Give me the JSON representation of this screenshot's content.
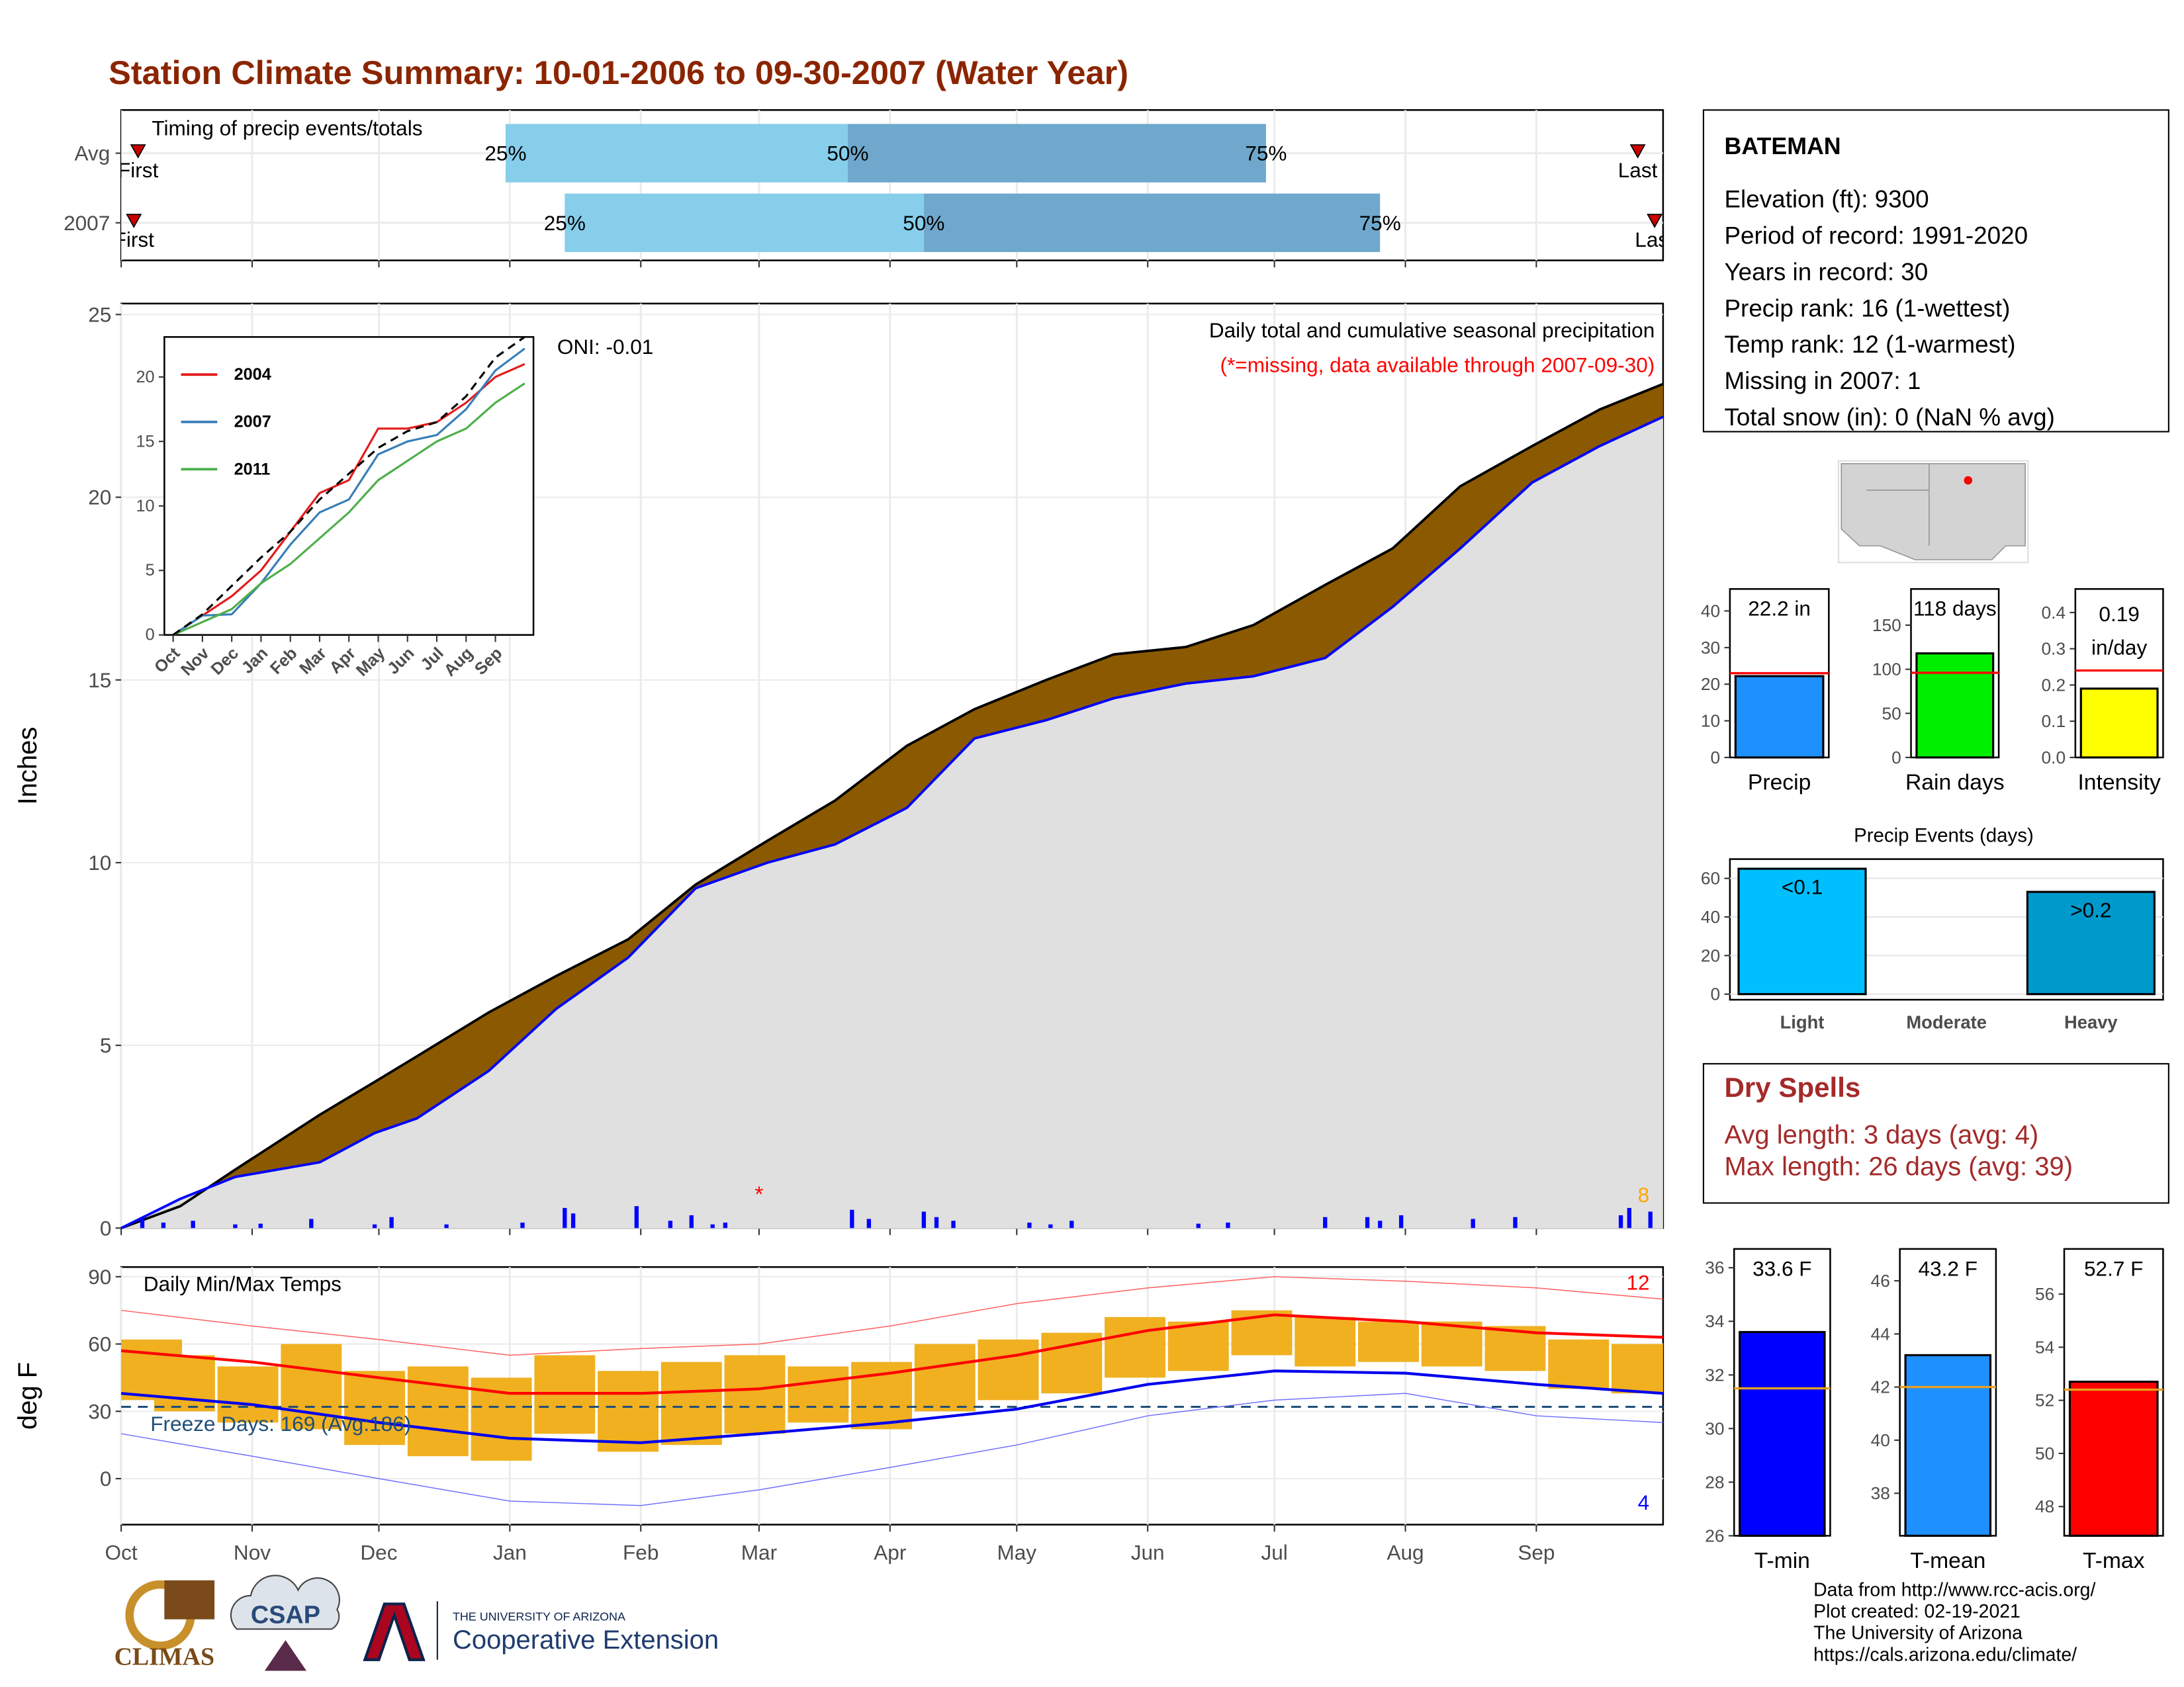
{
  "title": "Station Climate Summary: 10-01-2006 to 09-30-2007 (Water Year)",
  "chart_data": [
    {
      "type": "timing",
      "title": "Timing of precip events/totals",
      "categories": [
        "Avg",
        "2007"
      ],
      "quantile_labels": [
        "25%",
        "50%",
        "75%"
      ],
      "quantiles": [
        [
          91,
          172,
          271
        ],
        [
          105,
          190,
          298
        ]
      ],
      "first_label": "First",
      "last_label": "Last",
      "first": [
        4,
        3
      ],
      "last": [
        359,
        363
      ],
      "colors": [
        "#87ceeb",
        "#6fa8cc"
      ],
      "marker_color": "#cc0000",
      "xlim": [
        0,
        365
      ],
      "xticks": [
        0,
        31,
        61,
        92,
        123,
        151,
        182,
        212,
        243,
        273,
        304,
        335
      ],
      "grid": true
    },
    {
      "type": "cumulative",
      "title": "Daily total and cumulative seasonal precipitation",
      "subtitle": "(*=missing, data available through 2007-09-30)",
      "ylabel": "Inches",
      "annotation": "ONI: -0.01",
      "count_label": "8",
      "x": [
        0,
        14,
        27,
        47,
        60,
        70,
        87,
        103,
        120,
        136,
        153,
        169,
        186,
        202,
        219,
        235,
        252,
        268,
        285,
        301,
        317,
        334,
        350,
        365
      ],
      "series": [
        {
          "color": "#000000",
          "fill": "#8b5a00",
          "values": [
            0,
            0.6,
            1.6,
            3.1,
            4.0,
            4.7,
            5.9,
            6.9,
            7.9,
            9.4,
            10.6,
            11.7,
            13.2,
            14.2,
            15.0,
            15.7,
            15.9,
            16.5,
            17.6,
            18.6,
            20.3,
            21.4,
            22.4,
            23.1
          ]
        },
        {
          "color": "#0000ff",
          "fill": "#e0e0e0",
          "values": [
            0,
            0.8,
            1.4,
            1.8,
            2.6,
            3.0,
            4.3,
            6.0,
            7.4,
            9.3,
            10.0,
            10.5,
            11.5,
            13.4,
            13.9,
            14.5,
            14.9,
            15.1,
            15.6,
            17.0,
            18.6,
            20.4,
            21.4,
            22.2
          ]
        }
      ],
      "daily": {
        "color": "#0000ff",
        "x": [
          5,
          10,
          17,
          27,
          33,
          45,
          60,
          64,
          77,
          95,
          105,
          107,
          122,
          130,
          135,
          140,
          143,
          173,
          177,
          190,
          193,
          197,
          215,
          220,
          225,
          255,
          262,
          285,
          295,
          298,
          303,
          320,
          330,
          355,
          357,
          362
        ],
        "values": [
          0.3,
          0.15,
          0.2,
          0.1,
          0.12,
          0.25,
          0.1,
          0.3,
          0.1,
          0.15,
          0.55,
          0.4,
          0.6,
          0.2,
          0.35,
          0.1,
          0.15,
          0.5,
          0.25,
          0.45,
          0.3,
          0.2,
          0.15,
          0.1,
          0.2,
          0.12,
          0.15,
          0.3,
          0.3,
          0.2,
          0.35,
          0.25,
          0.3,
          0.35,
          0.55,
          0.45
        ]
      },
      "missing_marker": "*",
      "missing_x": 151,
      "xlim": [
        0,
        365
      ],
      "xticks": [
        0,
        31,
        61,
        92,
        123,
        151,
        182,
        212,
        243,
        273,
        304,
        335
      ],
      "ylim": [
        0,
        25.3
      ],
      "yticks": [
        0,
        5,
        10,
        15,
        20,
        25
      ],
      "grid": true
    },
    {
      "type": "line",
      "x": [
        0,
        1,
        2,
        3,
        4,
        5,
        6,
        7,
        8,
        9,
        10,
        11,
        12
      ],
      "series": [
        {
          "name": "2004",
          "color": "#e41a1c",
          "values": [
            0,
            1.5,
            3,
            5,
            8,
            11,
            12,
            16,
            16,
            16.5,
            18,
            20,
            21
          ]
        },
        {
          "name": "2007",
          "color": "#377eb8",
          "values": [
            0,
            1.5,
            1.6,
            4,
            7,
            9.5,
            10.5,
            14,
            15,
            15.5,
            17.5,
            20.5,
            22.2
          ]
        },
        {
          "name": "2011",
          "color": "#4daf4a",
          "values": [
            0,
            1,
            2,
            4,
            5.5,
            7.5,
            9.5,
            12,
            13.5,
            15,
            16,
            18,
            19.5
          ]
        },
        {
          "color": "#000000",
          "dashed": true,
          "values": [
            0,
            1.6,
            3.8,
            6,
            8,
            10.5,
            12.5,
            14.5,
            15.8,
            16.5,
            18.5,
            21.5,
            23.1
          ]
        }
      ],
      "xlim": [
        -0.3,
        12.3
      ],
      "xticks": [
        {
          "value": 0,
          "label": "Oct"
        },
        {
          "value": 1,
          "label": "Nov"
        },
        {
          "value": 2,
          "label": "Dec"
        },
        {
          "value": 3,
          "label": "Jan"
        },
        {
          "value": 4,
          "label": "Feb"
        },
        {
          "value": 5,
          "label": "Mar"
        },
        {
          "value": 6,
          "label": "Apr"
        },
        {
          "value": 7,
          "label": "May"
        },
        {
          "value": 8,
          "label": "Jun"
        },
        {
          "value": 9,
          "label": "Jul"
        },
        {
          "value": 10,
          "label": "Aug"
        },
        {
          "value": 11,
          "label": "Sep"
        }
      ],
      "ylim": [
        0,
        23.1
      ],
      "yticks": [
        0,
        5,
        10,
        15,
        20
      ]
    },
    {
      "type": "temps",
      "title": "Daily Min/Max Temps",
      "ylabel": "deg F",
      "freeze_label": "Freeze Days: 169 (Avg:186)",
      "freeze": 32,
      "high_count": "12",
      "low_count": "4",
      "bars": {
        "color": "#f0b020",
        "x": [
          0,
          15,
          30,
          45,
          60,
          75,
          90,
          105,
          120,
          135,
          150,
          165,
          180,
          195,
          210,
          225,
          240,
          255,
          270,
          285,
          300,
          315,
          330,
          345,
          360
        ],
        "max": [
          62,
          55,
          50,
          60,
          48,
          50,
          45,
          55,
          48,
          52,
          55,
          50,
          52,
          60,
          62,
          65,
          72,
          70,
          75,
          72,
          70,
          70,
          68,
          62,
          60
        ],
        "min": [
          35,
          30,
          25,
          22,
          15,
          10,
          8,
          20,
          12,
          15,
          20,
          25,
          22,
          30,
          35,
          38,
          45,
          48,
          55,
          50,
          52,
          50,
          48,
          40,
          38
        ]
      },
      "x": [
        0,
        31,
        61,
        92,
        123,
        151,
        182,
        212,
        243,
        273,
        304,
        335,
        365
      ],
      "lines": [
        {
          "color": "#ff6060",
          "width": 0.7,
          "values": [
            75,
            68,
            62,
            55,
            58,
            60,
            68,
            78,
            85,
            90,
            88,
            85,
            80
          ]
        },
        {
          "color": "#7070ff",
          "width": 0.7,
          "values": [
            20,
            10,
            0,
            -10,
            -12,
            -5,
            5,
            15,
            28,
            35,
            38,
            28,
            25
          ]
        },
        {
          "color": "#ff0000",
          "width": 2,
          "values": [
            57,
            52,
            45,
            38,
            38,
            40,
            47,
            55,
            66,
            73,
            70,
            65,
            63
          ]
        },
        {
          "color": "#0000ee",
          "width": 2,
          "values": [
            38,
            33,
            25,
            18,
            16,
            20,
            25,
            31,
            42,
            48,
            47,
            42,
            38
          ]
        }
      ],
      "xlim": [
        0,
        365
      ],
      "xticks": [
        {
          "value": 0,
          "label": "Oct"
        },
        {
          "value": 31,
          "label": "Nov"
        },
        {
          "value": 61,
          "label": "Dec"
        },
        {
          "value": 92,
          "label": "Jan"
        },
        {
          "value": 123,
          "label": "Feb"
        },
        {
          "value": 151,
          "label": "Mar"
        },
        {
          "value": 182,
          "label": "Apr"
        },
        {
          "value": 212,
          "label": "May"
        },
        {
          "value": 243,
          "label": "Jun"
        },
        {
          "value": 273,
          "label": "Jul"
        },
        {
          "value": 304,
          "label": "Aug"
        },
        {
          "value": 335,
          "label": "Sep"
        }
      ],
      "ylim": [
        -20.5,
        94.3
      ],
      "yticks": [
        0,
        30,
        60,
        90
      ],
      "grid": true
    },
    {
      "type": "single_bar",
      "categories": [
        "Precip"
      ],
      "values": [
        22.2
      ],
      "value_labels": [
        "22.2 in"
      ],
      "avg": 23,
      "color": "#1e90ff",
      "avg_color": "#ff0000",
      "ylim": [
        0,
        46
      ],
      "yticks": [
        0,
        10,
        20,
        30,
        40
      ]
    },
    {
      "type": "single_bar",
      "categories": [
        "Rain days"
      ],
      "values": [
        118
      ],
      "value_labels": [
        "118 days"
      ],
      "avg": 96,
      "color": "#00ee00",
      "avg_color": "#ff0000",
      "ylim": [
        0,
        191
      ],
      "yticks": [
        0,
        50,
        100,
        150
      ]
    },
    {
      "type": "single_bar",
      "categories": [
        "Intensity"
      ],
      "values": [
        0.19
      ],
      "value_labels": [
        "0.19 in/day"
      ],
      "wrap": true,
      "avg": 0.24,
      "color": "#ffff00",
      "avg_color": "#ff0000",
      "ylim": [
        0,
        0.465
      ],
      "yticks": [
        {
          "value": 0,
          "label": "0.0"
        },
        0.1,
        0.2,
        0.3,
        0.4
      ]
    },
    {
      "type": "bar",
      "title": "Precip Events (days)",
      "categories": [
        "Light",
        "Moderate",
        "Heavy"
      ],
      "values": [
        65,
        0,
        53
      ],
      "bar_labels": [
        "<0.1",
        null,
        ">0.2"
      ],
      "colors": [
        "#00bfff",
        "#1a6fb0",
        "#0099cc"
      ],
      "ylim": [
        -2.9,
        70
      ],
      "yticks": [
        0,
        20,
        40,
        60
      ],
      "grid": true
    },
    {
      "type": "single_bar",
      "categories": [
        "T-min"
      ],
      "values": [
        33.6
      ],
      "value_labels": [
        "33.6 F"
      ],
      "avg": 31.5,
      "color": "#0000ff",
      "avg_color": "#e6a020",
      "ylim": [
        26,
        36.7
      ],
      "yticks": [
        26,
        28,
        30,
        32,
        34,
        36
      ]
    },
    {
      "type": "single_bar",
      "categories": [
        "T-mean"
      ],
      "values": [
        43.2
      ],
      "value_labels": [
        "43.2 F"
      ],
      "avg": 42.0,
      "color": "#1e90ff",
      "avg_color": "#e6a020",
      "ylim": [
        36.4,
        47.2
      ],
      "yticks": [
        38,
        40,
        42,
        44,
        46
      ]
    },
    {
      "type": "single_bar",
      "categories": [
        "T-max"
      ],
      "values": [
        52.7
      ],
      "value_labels": [
        "52.7 F"
      ],
      "avg": 52.4,
      "color": "#ff0000",
      "avg_color": "#e6a020",
      "ylim": [
        46.9,
        57.7
      ],
      "yticks": [
        48,
        50,
        52,
        54,
        56
      ]
    }
  ],
  "info": {
    "station": "BATEMAN",
    "lines": [
      "Elevation (ft): 9300",
      "Period of record: 1991-2020",
      "Years in record: 30",
      "Precip rank: 16 (1-wettest)",
      "Temp rank: 12 (1-warmest)",
      "Missing in 2007: 1",
      "Total snow (in): 0 (NaN % avg)"
    ]
  },
  "dry_spells": {
    "title": "Dry Spells",
    "lines": [
      "Avg length: 3 days (avg: 4)",
      "Max length: 26 days (avg: 39)"
    ]
  },
  "footer": {
    "lines": [
      "Data from http://www.rcc-acis.org/",
      "Plot created: 02-19-2021",
      "The University of Arizona",
      "https://cals.arizona.edu/climate/"
    ],
    "logos": [
      "CLIMAS",
      "CSAP",
      "THE UNIVERSITY OF ARIZONA",
      "Cooperative Extension"
    ]
  }
}
